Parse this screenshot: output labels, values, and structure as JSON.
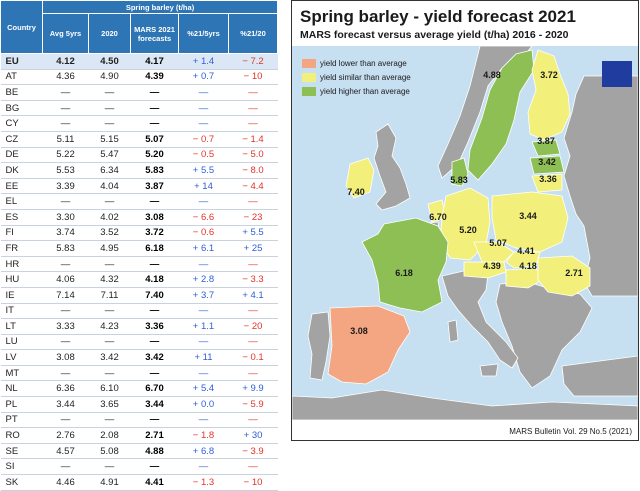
{
  "table": {
    "header": {
      "country": "Country",
      "group": "Spring barley (t/ha)",
      "cols": [
        "Avg 5yrs",
        "2020",
        "MARS 2021 forecasts",
        "%21/5yrs",
        "%21/20"
      ]
    },
    "rows": [
      {
        "c": "EU",
        "a": "4.12",
        "b": "4.50",
        "f": "4.17",
        "p1": "+ 1.4",
        "p2": "− 7.2"
      },
      {
        "c": "AT",
        "a": "4.36",
        "b": "4.90",
        "f": "4.39",
        "p1": "+ 0.7",
        "p2": "− 10"
      },
      {
        "c": "BE",
        "a": "—",
        "b": "—",
        "f": "—",
        "p1": "—",
        "p2": "—"
      },
      {
        "c": "BG",
        "a": "—",
        "b": "—",
        "f": "—",
        "p1": "—",
        "p2": "—"
      },
      {
        "c": "CY",
        "a": "—",
        "b": "—",
        "f": "—",
        "p1": "—",
        "p2": "—"
      },
      {
        "c": "CZ",
        "a": "5.11",
        "b": "5.15",
        "f": "5.07",
        "p1": "− 0.7",
        "p2": "− 1.4"
      },
      {
        "c": "DE",
        "a": "5.22",
        "b": "5.47",
        "f": "5.20",
        "p1": "− 0.5",
        "p2": "− 5.0"
      },
      {
        "c": "DK",
        "a": "5.53",
        "b": "6.34",
        "f": "5.83",
        "p1": "+ 5.5",
        "p2": "− 8.0"
      },
      {
        "c": "EE",
        "a": "3.39",
        "b": "4.04",
        "f": "3.87",
        "p1": "+ 14",
        "p2": "− 4.4"
      },
      {
        "c": "EL",
        "a": "—",
        "b": "—",
        "f": "—",
        "p1": "—",
        "p2": "—"
      },
      {
        "c": "ES",
        "a": "3.30",
        "b": "4.02",
        "f": "3.08",
        "p1": "− 6.6",
        "p2": "− 23"
      },
      {
        "c": "FI",
        "a": "3.74",
        "b": "3.52",
        "f": "3.72",
        "p1": "− 0.6",
        "p2": "+ 5.5"
      },
      {
        "c": "FR",
        "a": "5.83",
        "b": "4.95",
        "f": "6.18",
        "p1": "+ 6.1",
        "p2": "+ 25"
      },
      {
        "c": "HR",
        "a": "—",
        "b": "—",
        "f": "—",
        "p1": "—",
        "p2": "—"
      },
      {
        "c": "HU",
        "a": "4.06",
        "b": "4.32",
        "f": "4.18",
        "p1": "+ 2.8",
        "p2": "− 3.3"
      },
      {
        "c": "IE",
        "a": "7.14",
        "b": "7.11",
        "f": "7.40",
        "p1": "+ 3.7",
        "p2": "+ 4.1"
      },
      {
        "c": "IT",
        "a": "—",
        "b": "—",
        "f": "—",
        "p1": "—",
        "p2": "—"
      },
      {
        "c": "LT",
        "a": "3.33",
        "b": "4.23",
        "f": "3.36",
        "p1": "+ 1.1",
        "p2": "− 20"
      },
      {
        "c": "LU",
        "a": "—",
        "b": "—",
        "f": "—",
        "p1": "—",
        "p2": "—"
      },
      {
        "c": "LV",
        "a": "3.08",
        "b": "3.42",
        "f": "3.42",
        "p1": "+ 11",
        "p2": "− 0.1"
      },
      {
        "c": "MT",
        "a": "—",
        "b": "—",
        "f": "—",
        "p1": "—",
        "p2": "—"
      },
      {
        "c": "NL",
        "a": "6.36",
        "b": "6.10",
        "f": "6.70",
        "p1": "+ 5.4",
        "p2": "+ 9.9"
      },
      {
        "c": "PL",
        "a": "3.44",
        "b": "3.65",
        "f": "3.44",
        "p1": "+ 0.0",
        "p2": "− 5.9"
      },
      {
        "c": "PT",
        "a": "—",
        "b": "—",
        "f": "—",
        "p1": "—",
        "p2": "—"
      },
      {
        "c": "RO",
        "a": "2.76",
        "b": "2.08",
        "f": "2.71",
        "p1": "− 1.8",
        "p2": "+ 30"
      },
      {
        "c": "SE",
        "a": "4.57",
        "b": "5.08",
        "f": "4.88",
        "p1": "+ 6.8",
        "p2": "− 3.9"
      },
      {
        "c": "SI",
        "a": "—",
        "b": "—",
        "f": "—",
        "p1": "—",
        "p2": "—"
      },
      {
        "c": "SK",
        "a": "4.46",
        "b": "4.91",
        "f": "4.41",
        "p1": "− 1.3",
        "p2": "− 10"
      }
    ]
  },
  "map": {
    "title": "Spring barley - yield forecast 2021",
    "subtitle": "MARS forecast versus average yield (t/ha) 2016 - 2020",
    "legend": [
      {
        "label": "yield lower than average",
        "color": "#f4a582"
      },
      {
        "label": "yield similar than average",
        "color": "#f2f07a"
      },
      {
        "label": "yield higher than average",
        "color": "#8dbf55"
      }
    ],
    "colors": {
      "sea": "#c6dff1",
      "other": "#a3a3a3",
      "lower": "#f4a582",
      "similar": "#f2f07a",
      "higher": "#8dbf55"
    },
    "values": [
      {
        "country": "SE",
        "value": "4.88"
      },
      {
        "country": "FI",
        "value": "3.72"
      },
      {
        "country": "EE",
        "value": "3.87"
      },
      {
        "country": "LV",
        "value": "3.42"
      },
      {
        "country": "LT",
        "value": "3.36"
      },
      {
        "country": "IE",
        "value": "7.40"
      },
      {
        "country": "DK",
        "value": "5.83"
      },
      {
        "country": "NL",
        "value": "6.70"
      },
      {
        "country": "DE",
        "value": "5.20"
      },
      {
        "country": "PL",
        "value": "3.44"
      },
      {
        "country": "CZ",
        "value": "5.07"
      },
      {
        "country": "SK",
        "value": "4.41"
      },
      {
        "country": "AT",
        "value": "4.39"
      },
      {
        "country": "HU",
        "value": "4.18"
      },
      {
        "country": "RO",
        "value": "2.71"
      },
      {
        "country": "FR",
        "value": "6.18"
      },
      {
        "country": "ES",
        "value": "3.08"
      }
    ],
    "bulletin": "MARS Bulletin Vol. 29 No.5 (2021)"
  }
}
